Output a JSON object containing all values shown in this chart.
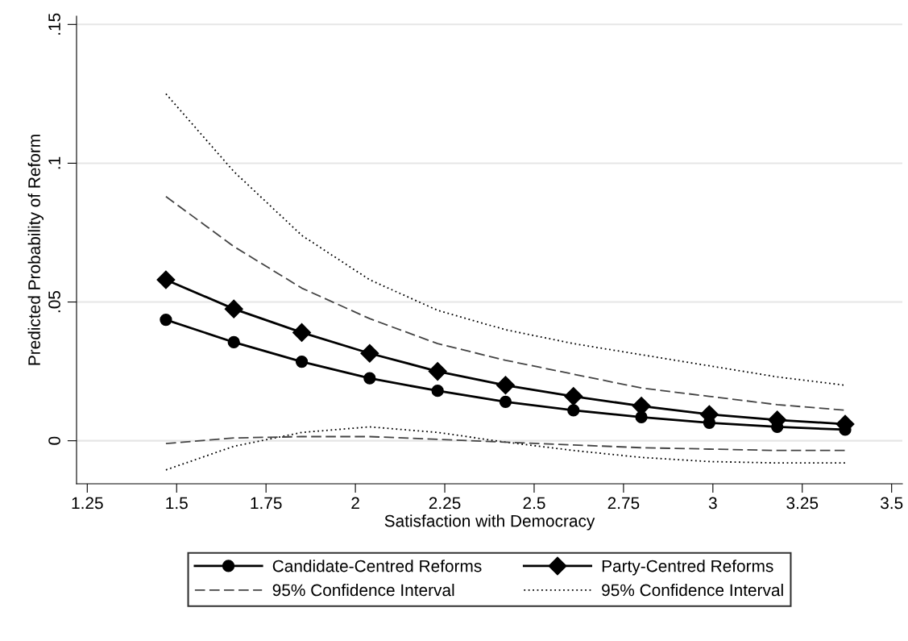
{
  "chart_data": {
    "type": "line",
    "xlabel": "Satisfaction with Democracy",
    "ylabel": "Predicted Probability of Reform",
    "x": [
      1.47,
      1.66,
      1.85,
      2.04,
      2.23,
      2.42,
      2.61,
      2.8,
      2.99,
      3.18,
      3.37
    ],
    "series": [
      {
        "name": "Candidate-Centred Reforms",
        "color": "#000000",
        "marker": "circle",
        "line_style": "solid",
        "values": [
          0.0436,
          0.0355,
          0.0285,
          0.0225,
          0.018,
          0.014,
          0.011,
          0.0085,
          0.0065,
          0.005,
          0.004
        ]
      },
      {
        "name": "95% Confidence Interval",
        "color": "#444444",
        "marker": "none",
        "line_style": "dashed",
        "values": [
          0.088,
          0.07,
          0.055,
          0.044,
          0.035,
          0.029,
          0.024,
          0.019,
          0.016,
          0.013,
          0.011
        ]
      },
      {
        "color": "#444444",
        "marker": "none",
        "line_style": "dashed",
        "values": [
          -0.001,
          0.001,
          0.0015,
          0.0015,
          0.0005,
          -0.0005,
          -0.0015,
          -0.0025,
          -0.003,
          -0.0035,
          -0.0035
        ]
      },
      {
        "name": "Party-Centred Reforms",
        "color": "#000000",
        "marker": "diamond",
        "line_style": "solid",
        "values": [
          0.058,
          0.0475,
          0.039,
          0.0315,
          0.025,
          0.02,
          0.016,
          0.0125,
          0.0095,
          0.0075,
          0.006
        ]
      },
      {
        "name": "95% Confidence Interval",
        "color": "#000000",
        "marker": "none",
        "line_style": "dotted",
        "values": [
          0.125,
          0.097,
          0.074,
          0.058,
          0.047,
          0.04,
          0.035,
          0.031,
          0.027,
          0.023,
          0.02
        ]
      },
      {
        "color": "#000000",
        "marker": "none",
        "line_style": "dotted",
        "values": [
          -0.0105,
          -0.002,
          0.003,
          0.005,
          0.003,
          -0.0005,
          -0.0035,
          -0.006,
          -0.0075,
          -0.008,
          -0.008
        ]
      }
    ],
    "xlim": [
      1.22,
      3.53
    ],
    "xticks": [
      1.25,
      1.5,
      1.75,
      2,
      2.25,
      2.5,
      2.75,
      3,
      3.25,
      3.5
    ],
    "ylim": [
      -0.0155,
      0.153
    ],
    "yticks": [
      {
        "value": 0,
        "label": "0"
      },
      {
        "value": 0.05,
        "label": ".05"
      },
      {
        "value": 0.1,
        "label": ".1"
      },
      {
        "value": 0.15,
        "label": ".15"
      }
    ],
    "grid": "y",
    "legend": "bottom"
  }
}
